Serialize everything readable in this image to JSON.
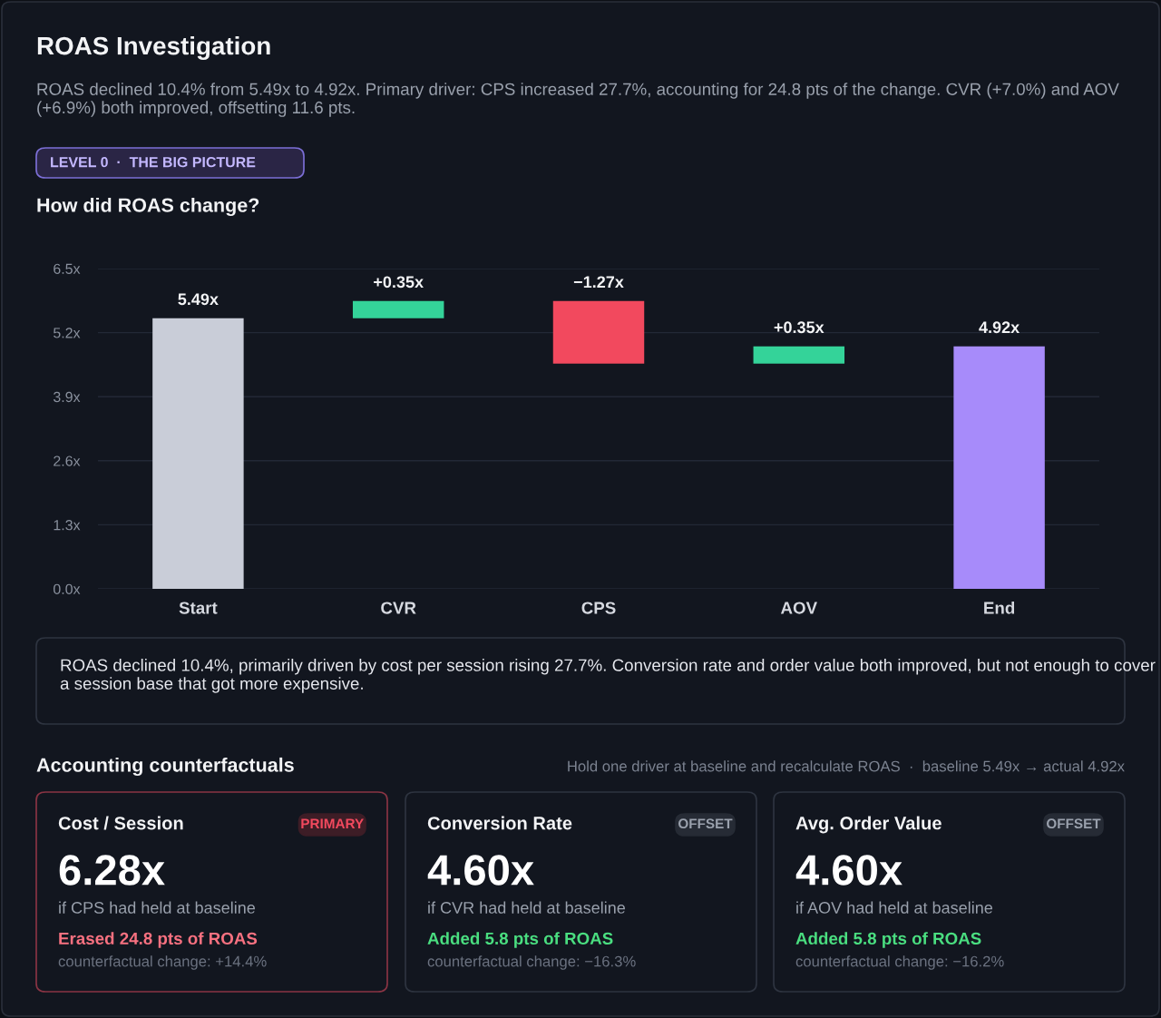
{
  "chart_data": {
    "type": "bar",
    "title": "ROAS Investigation",
    "subtitle": "ROAS declined 10.4% from 5.49x to 4.92x. Primary driver: CPS increased 27.7%, accounting for 24.8 pts of the change. CVR (+7.0%) and AOV (+6.9%) both improved, offsetting 11.6 pts.",
    "categories": [
      "Start",
      "CVR",
      "CPS",
      "AOV",
      "End"
    ],
    "values": [
      5.49,
      0.35,
      -1.27,
      0.35,
      4.92
    ],
    "base": [
      0,
      5.49,
      5.84,
      4.57,
      0
    ],
    "colors": [
      "#c9cdd8",
      "#34d399",
      "#f2495e",
      "#34d399",
      "#a78bfa"
    ],
    "value_labels": [
      "5.49x",
      "+0.35x",
      "−1.27x",
      "+0.35x",
      "4.92x"
    ],
    "ylim": [
      0,
      6.5
    ],
    "yticks": [
      {
        "value": 0,
        "label": "0.0x"
      },
      {
        "value": 1.3,
        "label": "1.3x"
      },
      {
        "value": 2.6,
        "label": "2.6x"
      },
      {
        "value": 3.9,
        "label": "3.9x"
      },
      {
        "value": 5.2,
        "label": "5.2x"
      },
      {
        "value": 6.5,
        "label": "6.5x"
      }
    ],
    "grid": "y",
    "annotations": [
      "LEVEL 0  ·  THE BIG PICTURE",
      "How did ROAS change?",
      "ROAS declined 10.4%, primarily driven by cost per session rising 27.7%. Conversion rate and order value both improved, but not enough to cover a session base that got more expensive.",
      "Accounting counterfactuals",
      "Hold one driver at baseline and recalculate ROAS  ·  baseline 5.49x → actual 4.92x",
      "Cost / Session",
      "PRIMARY",
      "6.28x",
      "if CPS had held at baseline",
      "Erased 24.8 pts of ROAS",
      "counterfactual change: +14.4%",
      "Conversion Rate",
      "OFFSET",
      "4.60x",
      "if CVR had held at baseline",
      "Added 5.8 pts of ROAS",
      "counterfactual change: −16.3%",
      "Avg. Order Value",
      "OFFSET",
      "4.60x",
      "if AOV had held at baseline",
      "Added 5.8 pts of ROAS",
      "counterfactual change: −16.2%"
    ]
  }
}
